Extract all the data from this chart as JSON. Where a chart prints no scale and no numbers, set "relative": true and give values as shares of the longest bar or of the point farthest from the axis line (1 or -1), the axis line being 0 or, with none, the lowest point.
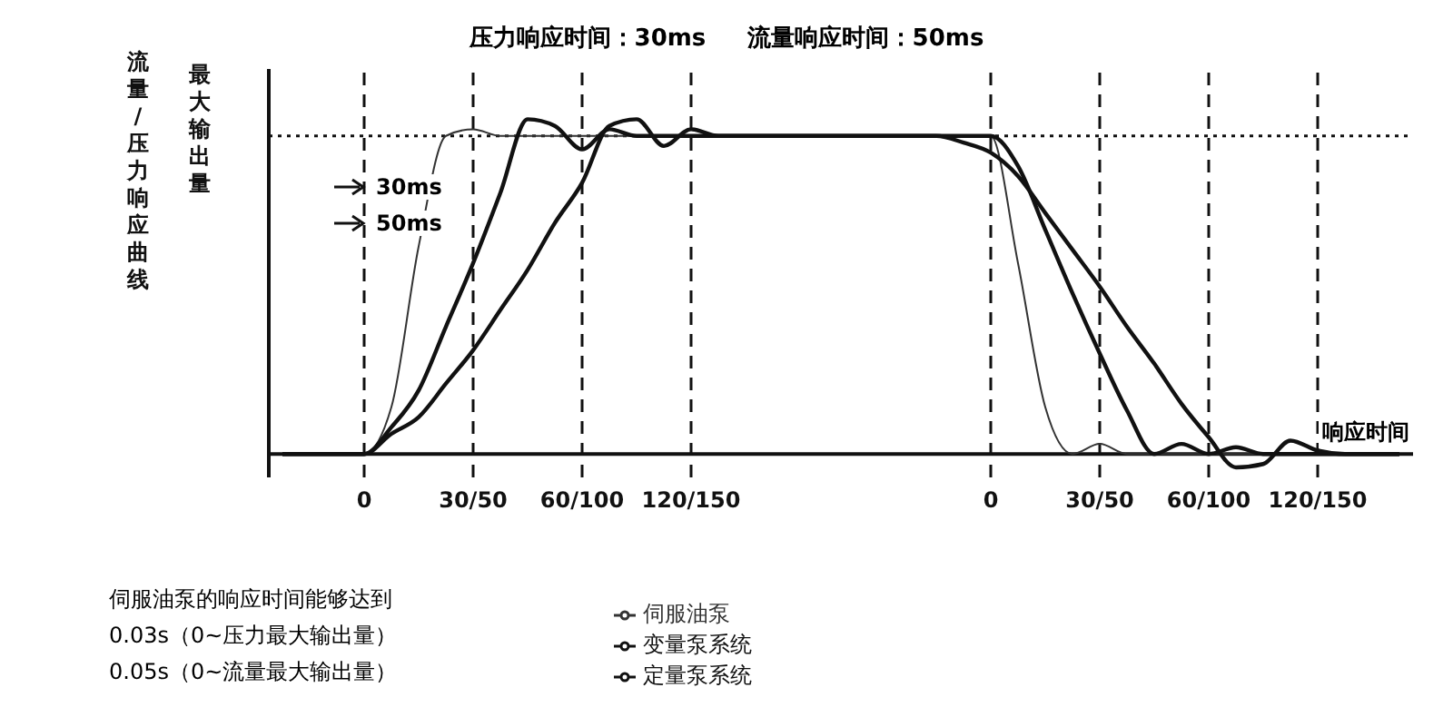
{
  "chart_data": {
    "type": "line",
    "title": "压力响应时间：30ms     流量响应时间：50ms",
    "xlabel": "响应时间",
    "ylabel": "流量/压力响应曲线",
    "relative": true,
    "categories": [
      null,
      null,
      null,
      "0",
      null,
      null,
      null,
      "30/50",
      null,
      null,
      null,
      "60/100",
      null,
      null,
      null,
      "120/150",
      null,
      null,
      null,
      null,
      null,
      null,
      null,
      null,
      null,
      null,
      "0",
      null,
      null,
      null,
      "30/50",
      null,
      null,
      null,
      "60/100",
      null,
      null,
      null,
      "120/150",
      null,
      null,
      null
    ],
    "series": [
      {
        "name": "伺服油泵",
        "color": "#333333",
        "values": [
          0,
          0,
          0,
          0,
          0.14,
          0.62,
          0.95,
          0.97,
          0.95,
          0.95,
          0.95,
          0.95,
          0.95,
          0.95,
          0.95,
          0.95,
          0.95,
          0.95,
          0.95,
          0.95,
          0.95,
          0.95,
          0.95,
          0.95,
          0.95,
          0.95,
          0.95,
          0.57,
          0.14,
          0,
          0.03,
          0,
          0,
          0,
          0,
          0,
          0,
          0,
          0,
          0,
          0,
          0
        ]
      },
      {
        "name": "定量泵系统",
        "color": "#111111",
        "values": [
          0,
          0,
          0,
          0,
          0.08,
          0.19,
          0.38,
          0.57,
          0.78,
          1.0,
          0.98,
          0.91,
          0.97,
          0.95,
          0.95,
          0.95,
          0.95,
          0.95,
          0.95,
          0.95,
          0.95,
          0.95,
          0.95,
          0.95,
          0.95,
          0.95,
          0.95,
          0.86,
          0.67,
          0.48,
          0.3,
          0.13,
          0,
          0.03,
          0,
          0.02,
          0,
          0,
          0,
          0,
          0,
          0
        ]
      },
      {
        "name": "变量泵系统",
        "color": "#111111",
        "values": [
          0,
          0,
          0,
          0,
          0.06,
          0.11,
          0.21,
          0.31,
          0.43,
          0.55,
          0.69,
          0.81,
          0.98,
          1.0,
          0.92,
          0.97,
          0.95,
          0.95,
          0.95,
          0.95,
          0.95,
          0.95,
          0.95,
          0.95,
          0.95,
          0.93,
          0.9,
          0.83,
          0.72,
          0.61,
          0.5,
          0.38,
          0.27,
          0.15,
          0.05,
          -0.04,
          -0.03,
          0.04,
          0.01,
          0,
          0,
          0
        ]
      }
    ],
    "ref_lines": [
      {
        "axis": "y",
        "value": 0.95,
        "label": "最大输出量",
        "line_style": "dotted"
      }
    ],
    "annotations": [
      "30ms",
      "50ms",
      "伺服油泵的响应时间能够达到",
      "0.03s（0~压力最大输出量）",
      "0.05s（0~流量最大输出量）"
    ],
    "legend": "bottom",
    "grid": "x",
    "marker": "none",
    "line_style": "solid"
  }
}
